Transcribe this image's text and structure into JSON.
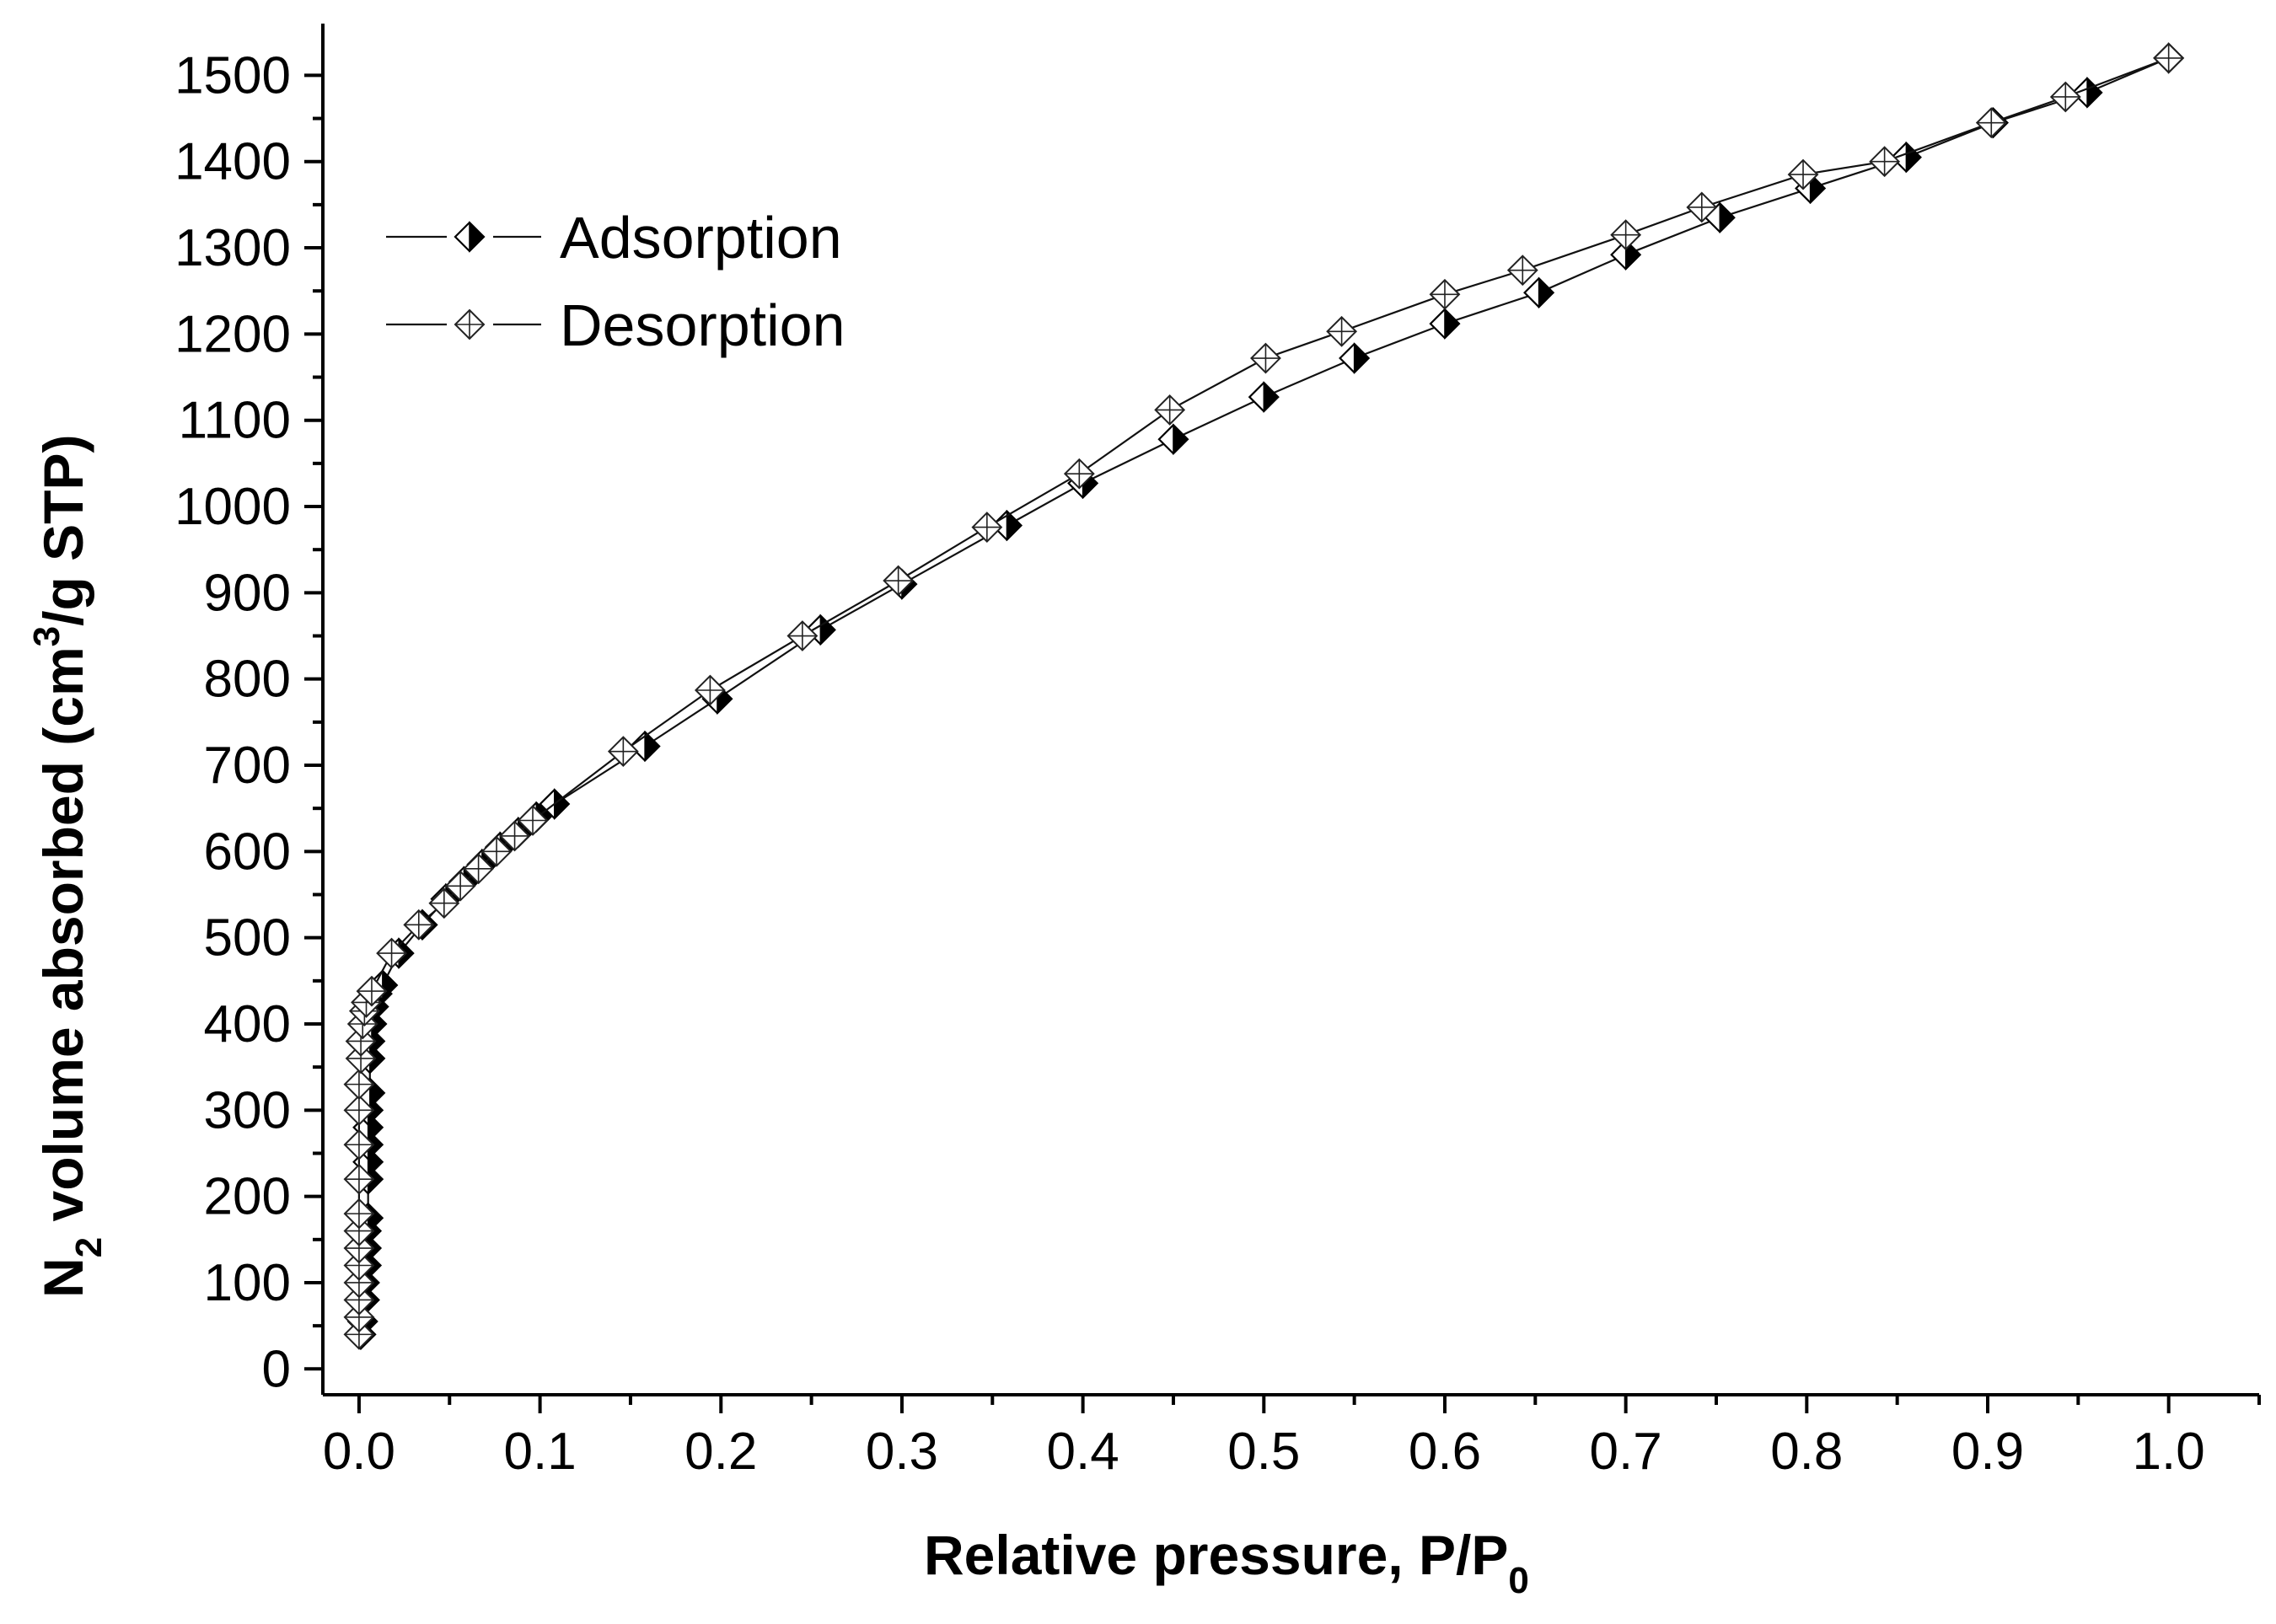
{
  "chart_data": {
    "type": "scatter",
    "title": "",
    "xlabel": "Relative pressure, P/P",
    "xlabel_sub": "0",
    "ylabel": "N",
    "ylabel_sub": "2",
    "ylabel_mid": " volume absorbed (cm",
    "ylabel_sup": "3",
    "ylabel_end": "/g STP)",
    "xlim": [
      -0.02,
      1.05
    ],
    "ylim": [
      -30,
      1560
    ],
    "x_ticks": [
      0.0,
      0.1,
      0.2,
      0.3,
      0.4,
      0.5,
      0.6,
      0.7,
      0.8,
      0.9,
      1.0
    ],
    "x_tick_labels": [
      "0.0",
      "0.1",
      "0.2",
      "0.3",
      "0.4",
      "0.5",
      "0.6",
      "0.7",
      "0.8",
      "0.9",
      "1.0"
    ],
    "y_ticks": [
      0,
      100,
      200,
      300,
      400,
      500,
      600,
      700,
      800,
      900,
      1000,
      1100,
      1200,
      1300,
      1400,
      1500
    ],
    "y_tick_labels": [
      "0",
      "100",
      "200",
      "300",
      "400",
      "500",
      "600",
      "700",
      "800",
      "900",
      "1000",
      "1100",
      "1200",
      "1300",
      "1400",
      "1500"
    ],
    "legend_position": "top-left",
    "series": [
      {
        "name": "Adsorption",
        "marker": "half-filled-diamond",
        "x": [
          0.001,
          0.002,
          0.003,
          0.003,
          0.004,
          0.004,
          0.004,
          0.005,
          0.005,
          0.005,
          0.005,
          0.005,
          0.005,
          0.006,
          0.006,
          0.006,
          0.007,
          0.008,
          0.01,
          0.013,
          0.022,
          0.035,
          0.048,
          0.058,
          0.068,
          0.078,
          0.088,
          0.098,
          0.108,
          0.158,
          0.198,
          0.255,
          0.3,
          0.358,
          0.4,
          0.45,
          0.5,
          0.55,
          0.6,
          0.652,
          0.7,
          0.752,
          0.802,
          0.855,
          0.903,
          0.955,
          1.0
        ],
        "y": [
          40,
          55,
          80,
          100,
          120,
          140,
          160,
          175,
          220,
          240,
          260,
          280,
          300,
          320,
          360,
          380,
          400,
          420,
          435,
          445,
          482,
          515,
          545,
          565,
          585,
          605,
          622,
          640,
          655,
          722,
          777,
          857,
          910,
          978,
          1027,
          1078,
          1127,
          1172,
          1212,
          1248,
          1292,
          1335,
          1369,
          1405,
          1445,
          1480,
          1520
        ]
      },
      {
        "name": "Desorption",
        "marker": "crossed-diamond",
        "x": [
          0.0,
          0.0,
          0.0,
          0.0,
          0.0,
          0.0,
          0.0,
          0.0,
          0.0,
          0.0,
          0.0,
          0.0,
          0.001,
          0.001,
          0.002,
          0.003,
          0.004,
          0.007,
          0.018,
          0.033,
          0.047,
          0.056,
          0.066,
          0.076,
          0.086,
          0.096,
          0.146,
          0.194,
          0.245,
          0.298,
          0.347,
          0.398,
          0.448,
          0.501,
          0.543,
          0.6,
          0.643,
          0.7,
          0.742,
          0.798,
          0.843,
          0.902,
          0.943,
          1.0
        ],
        "y": [
          40,
          60,
          80,
          100,
          120,
          140,
          160,
          180,
          220,
          260,
          300,
          330,
          360,
          380,
          400,
          415,
          425,
          438,
          482,
          515,
          540,
          560,
          580,
          600,
          618,
          636,
          716,
          787,
          850,
          914,
          976,
          1038,
          1112,
          1172,
          1203,
          1246,
          1274,
          1315,
          1347,
          1385,
          1400,
          1445,
          1475,
          1520
        ]
      }
    ]
  }
}
